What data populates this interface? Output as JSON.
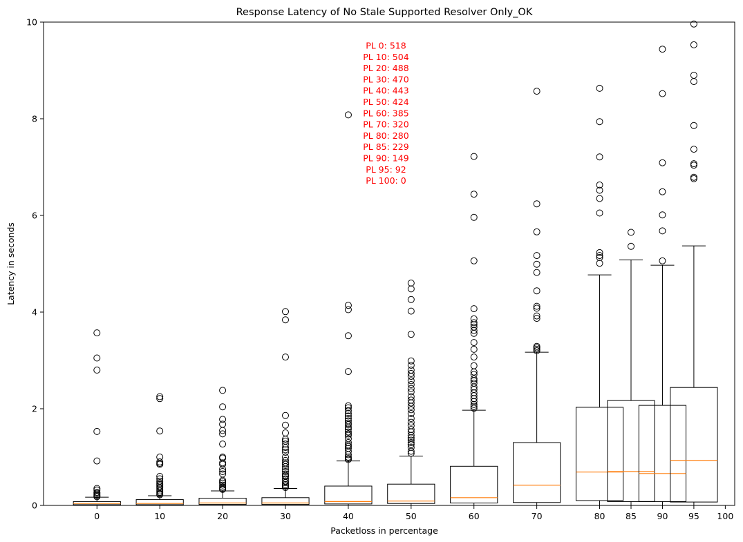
{
  "chart_data": {
    "type": "boxplot",
    "title": "Response Latency of No Stale Supported Resolver Only_OK",
    "xlabel": "Packetloss in percentage",
    "ylabel": "Latency in seconds",
    "ylim": [
      0,
      10
    ],
    "xlim": [
      -8.5,
      101.5
    ],
    "yticks": [
      0,
      2,
      4,
      6,
      8,
      10
    ],
    "xticks": [
      0,
      10,
      20,
      30,
      40,
      50,
      60,
      70,
      80,
      85,
      90,
      95,
      100
    ],
    "grid": false,
    "colors": {
      "box": "#000000",
      "median": "#ff7f0e",
      "annotation": "#ff0000",
      "flier": "#000000"
    },
    "annotation": {
      "x": 46,
      "y": 9.45,
      "lines": [
        "PL 0: 518",
        "PL 10: 504",
        "PL 20: 488",
        "PL 30: 470",
        "PL 40: 443",
        "PL 50: 424",
        "PL 60: 385",
        "PL 70: 320",
        "PL 80: 280",
        "PL 85: 229",
        "PL 90: 149",
        "PL 95: 92",
        "PL 100: 0"
      ]
    },
    "boxes": [
      {
        "x": 0,
        "q1": 0.015,
        "median": 0.04,
        "q3": 0.08,
        "whisker_low": 0.0,
        "whisker_high": 0.17,
        "fliers": [
          3.57,
          3.05,
          2.8,
          1.53,
          0.92,
          0.35,
          0.32,
          0.27,
          0.25,
          0.22,
          0.2,
          0.18
        ]
      },
      {
        "x": 10,
        "q1": 0.015,
        "median": 0.04,
        "q3": 0.12,
        "whisker_low": 0.0,
        "whisker_high": 0.2,
        "fliers": [
          2.25,
          2.21,
          1.54,
          1.0,
          0.9,
          0.87,
          0.85,
          0.6,
          0.55,
          0.5,
          0.46,
          0.43,
          0.4,
          0.37,
          0.34,
          0.3,
          0.27,
          0.24,
          0.22
        ]
      },
      {
        "x": 20,
        "q1": 0.02,
        "median": 0.05,
        "q3": 0.15,
        "whisker_low": 0.0,
        "whisker_high": 0.3,
        "fliers": [
          2.38,
          2.04,
          1.78,
          1.68,
          1.55,
          1.48,
          1.27,
          1.0,
          0.98,
          0.88,
          0.85,
          0.75,
          0.7,
          0.65,
          0.52,
          0.49,
          0.46,
          0.42,
          0.38,
          0.35,
          0.33
        ]
      },
      {
        "x": 30,
        "q1": 0.02,
        "median": 0.05,
        "q3": 0.16,
        "whisker_low": 0.0,
        "whisker_high": 0.35,
        "fliers": [
          4.01,
          3.84,
          3.07,
          1.86,
          1.66,
          1.5,
          1.37,
          1.33,
          1.27,
          1.2,
          1.15,
          1.1,
          1.0,
          0.93,
          0.88,
          0.85,
          0.8,
          0.75,
          0.7,
          0.65,
          0.62,
          0.6,
          0.55,
          0.5,
          0.47,
          0.43,
          0.4,
          0.37
        ]
      },
      {
        "x": 40,
        "q1": 0.03,
        "median": 0.08,
        "q3": 0.4,
        "whisker_low": 0.0,
        "whisker_high": 0.92,
        "fliers": [
          8.08,
          4.14,
          4.05,
          3.51,
          2.77,
          2.06,
          2.02,
          1.96,
          1.9,
          1.85,
          1.8,
          1.75,
          1.7,
          1.67,
          1.62,
          1.58,
          1.52,
          1.48,
          1.45,
          1.38,
          1.3,
          1.25,
          1.22,
          1.18,
          1.12,
          1.05,
          1.0,
          0.97,
          0.95
        ]
      },
      {
        "x": 50,
        "q1": 0.04,
        "median": 0.09,
        "q3": 0.44,
        "whisker_low": 0.0,
        "whisker_high": 1.02,
        "fliers": [
          4.6,
          4.48,
          4.26,
          4.02,
          3.54,
          2.99,
          2.9,
          2.8,
          2.73,
          2.67,
          2.58,
          2.5,
          2.42,
          2.35,
          2.25,
          2.18,
          2.12,
          2.05,
          1.98,
          1.9,
          1.8,
          1.72,
          1.65,
          1.57,
          1.52,
          1.45,
          1.4,
          1.35,
          1.3,
          1.26,
          1.2,
          1.12,
          1.08
        ]
      },
      {
        "x": 60,
        "q1": 0.05,
        "median": 0.16,
        "q3": 0.81,
        "whisker_low": 0.0,
        "whisker_high": 1.97,
        "fliers": [
          7.22,
          6.44,
          5.96,
          5.06,
          4.07,
          3.86,
          3.78,
          3.74,
          3.69,
          3.62,
          3.56,
          3.37,
          3.23,
          3.07,
          2.89,
          2.76,
          2.71,
          2.62,
          2.58,
          2.53,
          2.45,
          2.4,
          2.33,
          2.27,
          2.21,
          2.15,
          2.09,
          2.05,
          2.01
        ]
      },
      {
        "x": 70,
        "q1": 0.06,
        "median": 0.42,
        "q3": 1.3,
        "whisker_low": 0.0,
        "whisker_high": 3.17,
        "fliers": [
          8.57,
          6.24,
          5.66,
          5.17,
          4.99,
          4.82,
          4.44,
          4.12,
          4.08,
          3.92,
          3.87,
          3.29,
          3.26,
          3.23,
          3.2
        ]
      },
      {
        "x": 80,
        "q1": 0.1,
        "median": 0.69,
        "q3": 2.03,
        "whisker_low": 0.0,
        "whisker_high": 4.77,
        "fliers": [
          8.63,
          7.94,
          7.21,
          6.63,
          6.52,
          6.35,
          6.05,
          5.23,
          5.17,
          5.13,
          5.01
        ]
      },
      {
        "x": 85,
        "q1": 0.08,
        "median": 0.7,
        "q3": 2.17,
        "whisker_low": 0.0,
        "whisker_high": 5.08,
        "fliers": [
          5.65,
          5.36
        ]
      },
      {
        "x": 90,
        "q1": 0.08,
        "median": 0.66,
        "q3": 2.07,
        "whisker_low": 0.0,
        "whisker_high": 4.97,
        "fliers": [
          9.44,
          8.52,
          7.09,
          6.49,
          6.01,
          5.68,
          5.06
        ]
      },
      {
        "x": 95,
        "q1": 0.07,
        "median": 0.93,
        "q3": 2.44,
        "whisker_low": 0.0,
        "whisker_high": 5.37,
        "fliers": [
          9.96,
          9.53,
          8.9,
          8.77,
          7.86,
          7.37,
          7.07,
          7.04,
          6.79,
          6.76
        ]
      }
    ]
  }
}
